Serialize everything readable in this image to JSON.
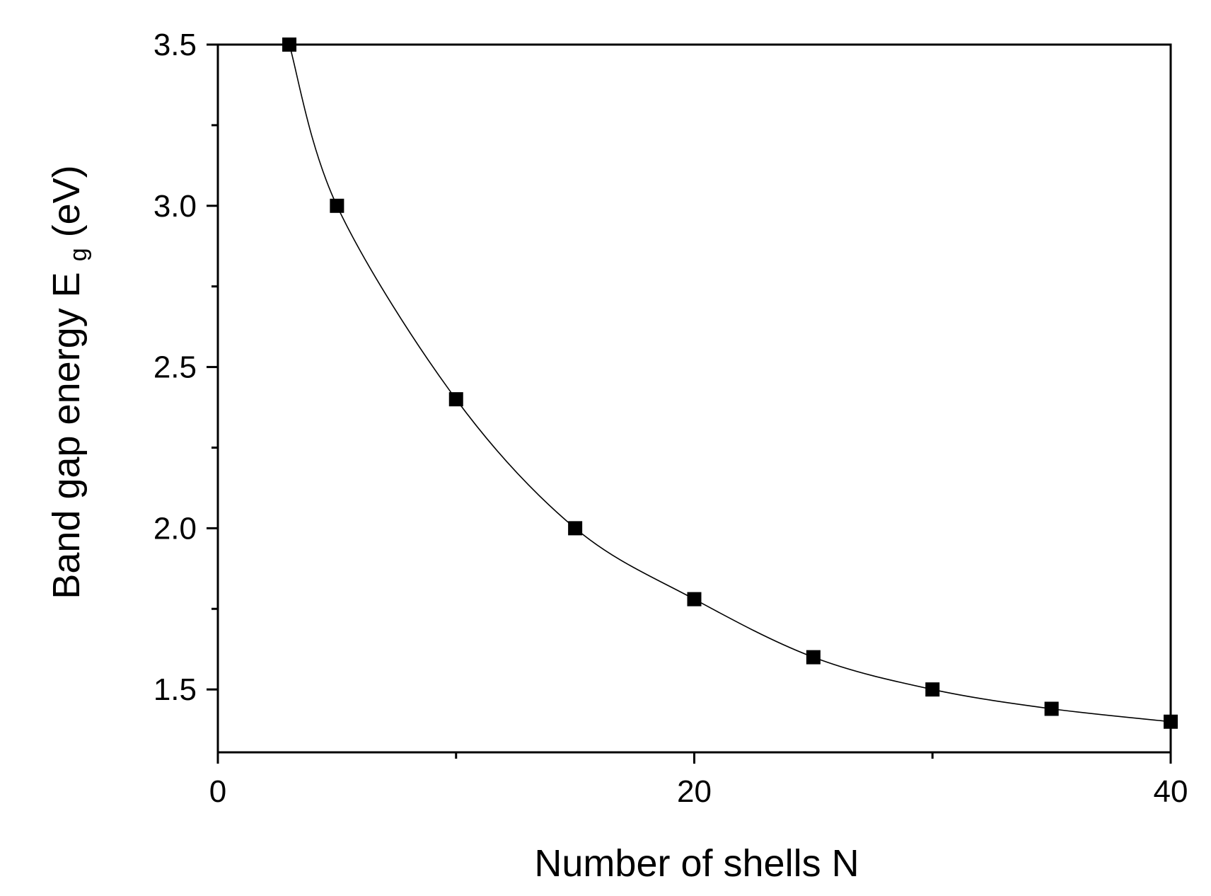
{
  "chart_data": {
    "type": "line",
    "title": "",
    "xlabel": "Number of shells N",
    "ylabel_main": "Band gap energy E",
    "ylabel_sub": "g",
    "ylabel_unit": " (eV)",
    "xlim": [
      0,
      40
    ],
    "ylim": [
      1.305,
      3.5
    ],
    "x_ticks": [
      0,
      20,
      40
    ],
    "x_tick_labels": [
      "0",
      "20",
      "40"
    ],
    "x_minor_ticks": [
      10,
      30
    ],
    "y_ticks": [
      1.5,
      2.0,
      2.5,
      3.0,
      3.5
    ],
    "y_tick_labels": [
      "1.5",
      "2.0",
      "2.5",
      "3.0",
      "3.5"
    ],
    "y_minor_ticks": [
      1.75,
      2.25,
      2.75,
      3.25
    ],
    "grid": false,
    "series": [
      {
        "marker": "square",
        "color": "#000000",
        "x": [
          3,
          5,
          10,
          15,
          20,
          25,
          30,
          35,
          40
        ],
        "y": [
          3.5,
          3.0,
          2.4,
          2.0,
          1.78,
          1.6,
          1.5,
          1.44,
          1.4
        ]
      }
    ]
  }
}
